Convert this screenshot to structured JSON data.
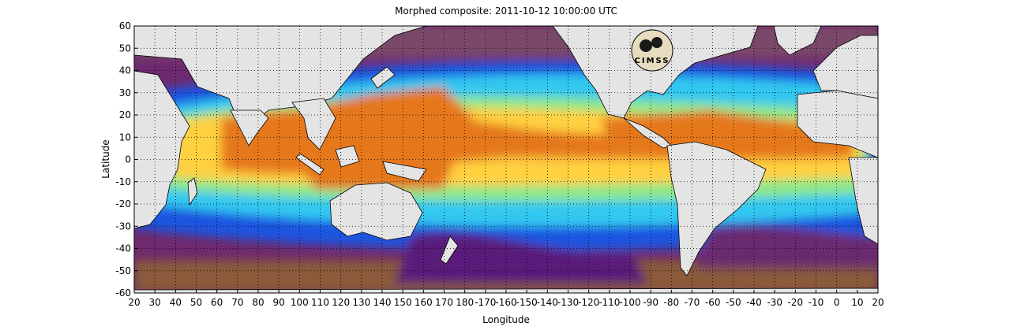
{
  "title": "Morphed composite: 2011-10-12 10:00:00 UTC",
  "logo_text": "CIMSS",
  "colors": {
    "land": "#e4e4e4",
    "dry_brown": "#8a5a3a",
    "purple": "#5a1f7a",
    "blue": "#1f55e0",
    "cyan": "#30c8f0",
    "green": "#8ee88a",
    "yellow": "#ffd040",
    "orange": "#e6781e"
  },
  "chart_data": {
    "type": "heatmap",
    "title": "Morphed composite: 2011-10-12 10:00:00 UTC",
    "xlabel": "Longitude",
    "ylabel": "Latitude",
    "xlim": [
      20,
      380
    ],
    "ylim": [
      -60,
      60
    ],
    "grid": true,
    "x_ticks": [
      "20",
      "30",
      "40",
      "50",
      "60",
      "70",
      "80",
      "90",
      "100",
      "110",
      "120",
      "130",
      "140",
      "150",
      "160",
      "170",
      "180",
      "-170",
      "-160",
      "-150",
      "-140",
      "-130",
      "-120",
      "-110",
      "-100",
      "-90",
      "-80",
      "-70",
      "-60",
      "-50",
      "-40",
      "-30",
      "-20",
      "-10",
      "0",
      "10",
      "20"
    ],
    "y_ticks": [
      "60",
      "50",
      "40",
      "30",
      "20",
      "10",
      "0",
      "-10",
      "-20",
      "-30",
      "-40",
      "-50",
      "-60"
    ]
  }
}
